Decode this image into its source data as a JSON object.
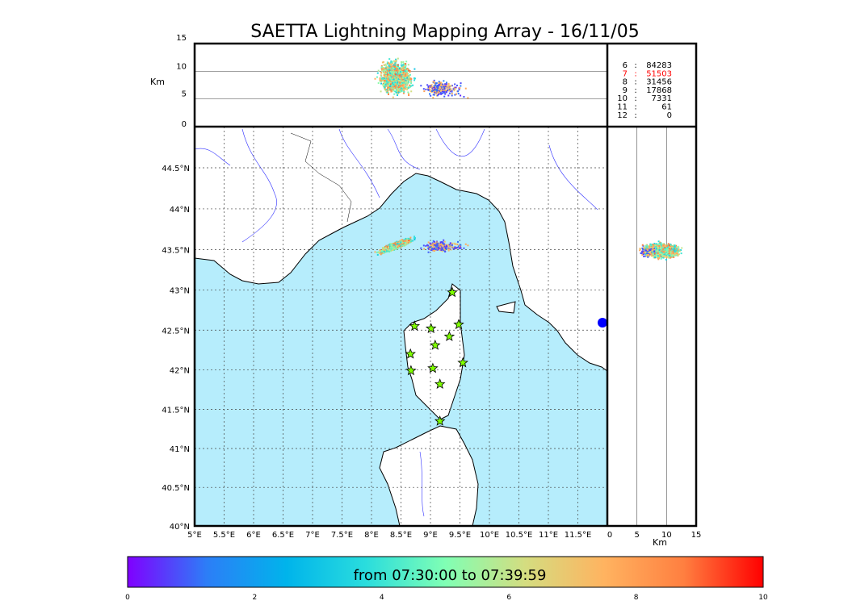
{
  "chart_data": {
    "type": "scatter",
    "title": "SAETTA Lightning Mapping Array - 16/11/05",
    "map": {
      "lon_range": [
        5,
        12
      ],
      "lat_range": [
        40,
        45
      ],
      "lon_ticks": [
        "5°E",
        "5.5°E",
        "6°E",
        "6.5°E",
        "7°E",
        "7.5°E",
        "8°E",
        "8.5°E",
        "9°E",
        "9.5°E",
        "10°E",
        "10.5°E",
        "11°E",
        "11.5°E"
      ],
      "lon_tick_values": [
        5,
        5.5,
        6,
        6.5,
        7,
        7.5,
        8,
        8.5,
        9,
        9.5,
        10,
        10.5,
        11,
        11.5
      ],
      "lat_ticks": [
        "40°N",
        "40.5°N",
        "41°N",
        "41.5°N",
        "42°N",
        "42.5°N",
        "43°N",
        "43.5°N",
        "44°N",
        "44.5°N"
      ],
      "lat_tick_values": [
        40,
        40.5,
        41,
        41.5,
        42,
        42.5,
        43,
        43.5,
        44,
        44.5
      ],
      "grid": true
    },
    "altitude_panel": {
      "ylabel": "Km",
      "ylim": [
        0,
        15
      ],
      "ticks": [
        "0",
        "5",
        "10",
        "15"
      ],
      "tick_values": [
        0,
        5,
        10,
        15
      ]
    },
    "side_panel": {
      "xlabel": "Km",
      "xlim": [
        0,
        15
      ],
      "ticks": [
        "0",
        "5",
        "10",
        "15"
      ],
      "tick_values": [
        0,
        5,
        10,
        15
      ]
    },
    "stations": [
      {
        "lon": 9.37,
        "lat": 42.97
      },
      {
        "lon": 8.73,
        "lat": 42.55
      },
      {
        "lon": 9.01,
        "lat": 42.52
      },
      {
        "lon": 9.48,
        "lat": 42.57
      },
      {
        "lon": 9.32,
        "lat": 42.42
      },
      {
        "lon": 9.08,
        "lat": 42.31
      },
      {
        "lon": 8.66,
        "lat": 42.2
      },
      {
        "lon": 9.55,
        "lat": 42.09
      },
      {
        "lon": 9.04,
        "lat": 42.02
      },
      {
        "lon": 8.67,
        "lat": 41.99
      },
      {
        "lon": 9.16,
        "lat": 41.82
      },
      {
        "lon": 9.16,
        "lat": 41.35
      }
    ],
    "sources_main": {
      "lon_center": 8.4,
      "lat_center": 43.56,
      "alt_center_km": 9
    },
    "sources_secondary": {
      "lon_center": 9.1,
      "lat_center": 43.55,
      "alt_center_km": 7
    },
    "station_counts": [
      {
        "stations": "6",
        "count": "84283",
        "highlight": false
      },
      {
        "stations": "7",
        "count": "51503",
        "highlight": true
      },
      {
        "stations": "8",
        "count": "31456",
        "highlight": false
      },
      {
        "stations": "9",
        "count": "17868",
        "highlight": false
      },
      {
        "stations": "10",
        "count": "7331",
        "highlight": false
      },
      {
        "stations": "11",
        "count": "61",
        "highlight": false
      },
      {
        "stations": "12",
        "count": "0",
        "highlight": false
      }
    ],
    "colorbar": {
      "label": "from 07:30:00 to 07:39:59",
      "range": [
        0,
        10
      ],
      "ticks": [
        "0",
        "2",
        "4",
        "6",
        "8",
        "10"
      ],
      "tick_values": [
        0,
        2,
        4,
        6,
        8,
        10
      ],
      "colormap": [
        "#8000ff",
        "#2c7ef7",
        "#00b4eb",
        "#2adddd",
        "#80ffb4",
        "#d4dd80",
        "#ffb360",
        "#ff7f40",
        "#ff0000"
      ]
    },
    "colors": {
      "sea": "#b6edfc",
      "highlight": "#ff0000",
      "station": "#7fff00"
    }
  }
}
